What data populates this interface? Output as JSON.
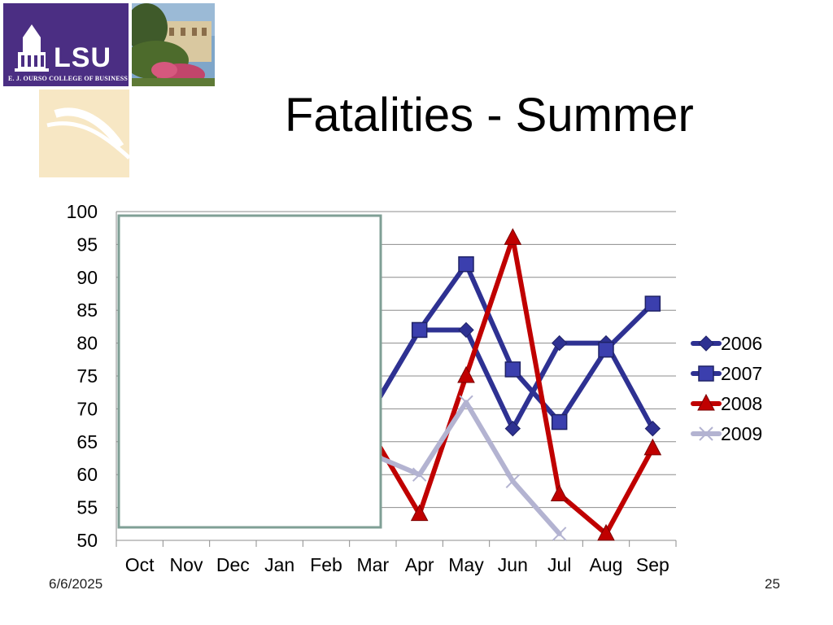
{
  "slide": {
    "title": "Fatalities - Summer",
    "date": "6/6/2025",
    "page_number": "25",
    "logo": {
      "name": "LSU",
      "subtitle": "E. J. OURSO COLLEGE OF BUSINESS"
    }
  },
  "colors": {
    "logo_purple": "#4b2e83",
    "cream_block": "#f7e7c4",
    "overlay_border": "#7f9f95"
  },
  "chart_data": {
    "type": "line",
    "categories": [
      "Oct",
      "Nov",
      "Dec",
      "Jan",
      "Feb",
      "Mar",
      "Apr",
      "May",
      "Jun",
      "Jul",
      "Aug",
      "Sep"
    ],
    "ylim": [
      50,
      100
    ],
    "yticks": [
      50,
      55,
      60,
      65,
      70,
      75,
      80,
      85,
      90,
      95,
      100
    ],
    "grid": true,
    "legend_position": "right",
    "series": [
      {
        "name": "2006",
        "color": "#2e3192",
        "marker": "diamond",
        "values": [
          null,
          null,
          null,
          null,
          null,
          70,
          82,
          82,
          67,
          80,
          80,
          67
        ]
      },
      {
        "name": "2007",
        "color": "#2e3192",
        "marker": "square",
        "values": [
          null,
          null,
          null,
          null,
          null,
          70,
          82,
          92,
          76,
          68,
          79,
          86
        ]
      },
      {
        "name": "2008",
        "color": "#c00000",
        "marker": "triangle",
        "values": [
          null,
          null,
          null,
          null,
          null,
          66,
          54,
          75,
          96,
          57,
          51,
          64
        ]
      },
      {
        "name": "2009",
        "color": "#b3b3d1",
        "marker": "x",
        "values": [
          null,
          null,
          null,
          null,
          null,
          63,
          60,
          71,
          59,
          51,
          null,
          null
        ]
      }
    ]
  }
}
